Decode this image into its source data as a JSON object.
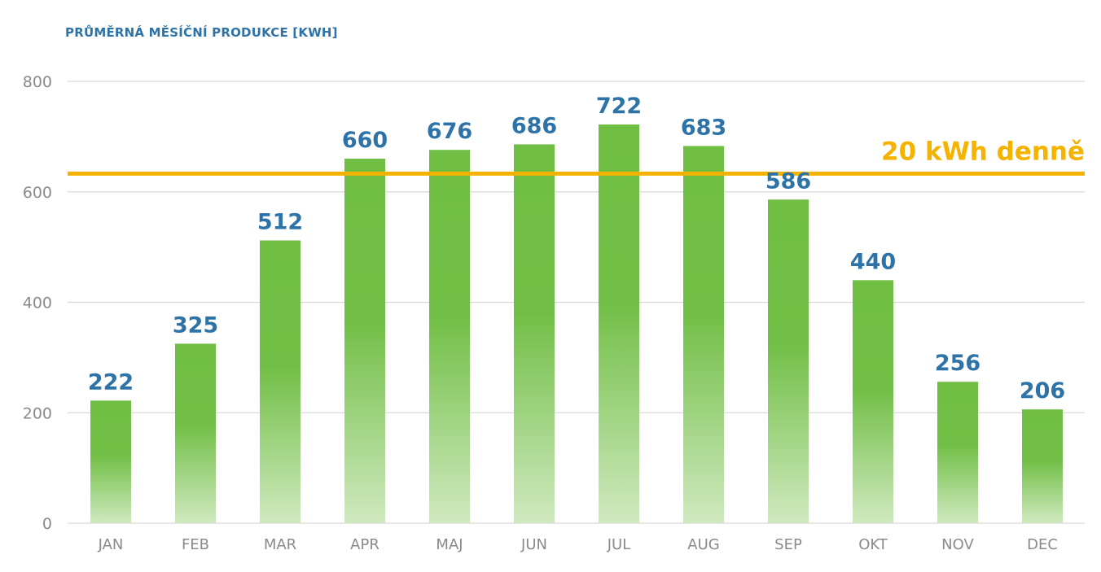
{
  "chart_data": {
    "type": "bar",
    "title": "PRŮMĚRNÁ MĚSÍČNÍ PRODUKCE [KWH]",
    "xlabel": "",
    "ylabel": "",
    "categories": [
      "JAN",
      "FEB",
      "MAR",
      "APR",
      "MAJ",
      "JUN",
      "JUL",
      "AUG",
      "SEP",
      "OKT",
      "NOV",
      "DEC"
    ],
    "values": [
      222,
      325,
      512,
      660,
      676,
      686,
      722,
      683,
      586,
      440,
      256,
      206
    ],
    "ylim": [
      0,
      800
    ],
    "yticks": [
      0,
      200,
      400,
      600,
      800
    ],
    "grid": true,
    "legend": "none",
    "reference_line": {
      "value": 633,
      "label": "20 kWh denně",
      "color": "#f5b300"
    },
    "colors": {
      "bar_top": "#70bf44",
      "bar_bottom": "#cfe9bf",
      "data_label": "#2e73a8",
      "title": "#2e73a8",
      "axis_text": "#8a8a8a",
      "grid": "#d9d9d9"
    }
  }
}
